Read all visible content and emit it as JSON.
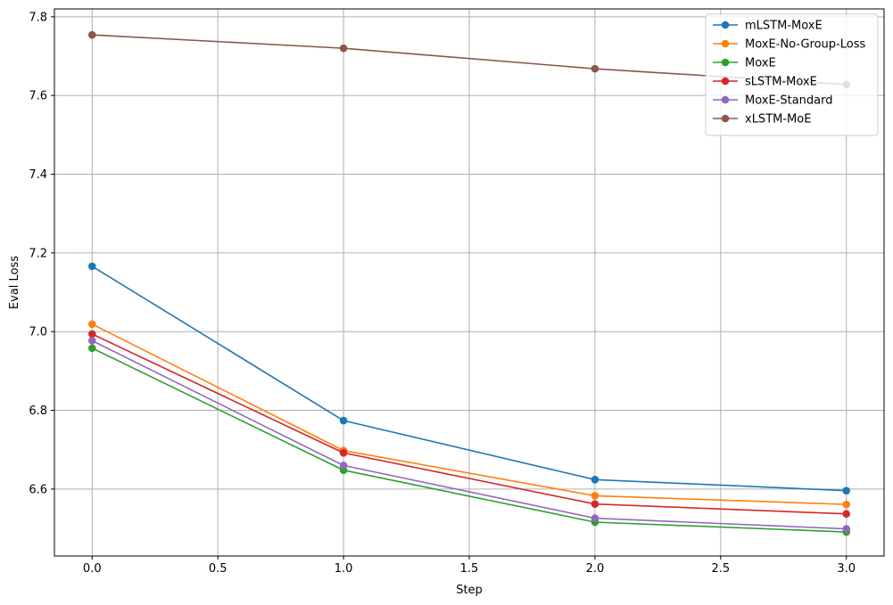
{
  "chart_data": {
    "type": "line",
    "title": "",
    "xlabel": "Step",
    "ylabel": "Eval Loss",
    "xlim": [
      -0.15,
      3.15
    ],
    "ylim": [
      6.43,
      7.82
    ],
    "x_ticks": [
      0.0,
      0.5,
      1.0,
      1.5,
      2.0,
      2.5,
      3.0
    ],
    "x_tick_labels": [
      "0.0",
      "0.5",
      "1.0",
      "1.5",
      "2.0",
      "2.5",
      "3.0"
    ],
    "y_ticks": [
      6.6,
      6.8,
      7.0,
      7.2,
      7.4,
      7.6,
      7.8
    ],
    "y_tick_labels": [
      "6.6",
      "6.8",
      "7.0",
      "7.2",
      "7.4",
      "7.6",
      "7.8"
    ],
    "grid": true,
    "legend_position": "top-right",
    "x": [
      0,
      1,
      2,
      3
    ],
    "series": [
      {
        "name": "mLSTM-MoxE",
        "color": "#1f77b4",
        "values": [
          7.166,
          6.774,
          6.624,
          6.596
        ]
      },
      {
        "name": "MoxE-No-Group-Loss",
        "color": "#ff7f0e",
        "values": [
          7.019,
          6.698,
          6.583,
          6.561
        ]
      },
      {
        "name": "MoxE",
        "color": "#2ca02c",
        "values": [
          6.958,
          6.648,
          6.516,
          6.491
        ]
      },
      {
        "name": "sLSTM-MoxE",
        "color": "#d62728",
        "values": [
          6.994,
          6.692,
          6.562,
          6.537
        ]
      },
      {
        "name": "MoxE-Standard",
        "color": "#9467bd",
        "values": [
          6.977,
          6.66,
          6.526,
          6.499
        ]
      },
      {
        "name": "xLSTM-MoE",
        "color": "#8c564b",
        "values": [
          7.754,
          7.72,
          7.668,
          7.628
        ]
      }
    ]
  }
}
